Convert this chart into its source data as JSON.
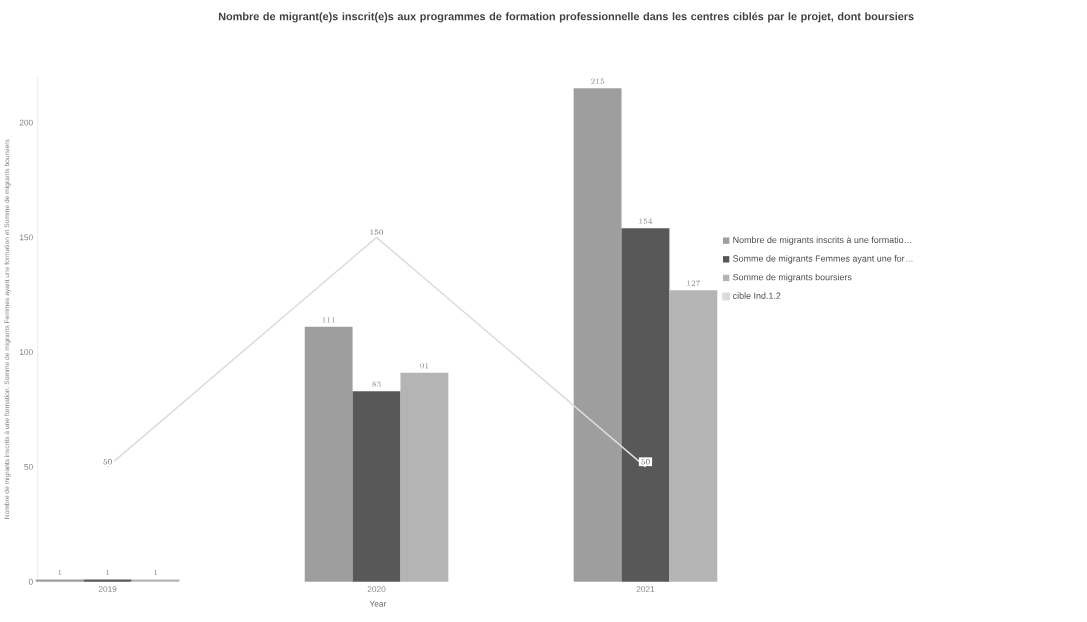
{
  "chart_data": {
    "type": "bar",
    "title": "Nombre de migrant(e)s inscrit(e)s aux programmes de formation professionnelle dans les centres ciblés par le projet, dont boursiers",
    "xlabel": "Year",
    "ylabel": "Nombre de migrants inscrits à une formation, Somme de migrants Femmes ayant une formation et Somme de migrants boursiers",
    "categories": [
      "2019",
      "2020",
      "2021"
    ],
    "series": [
      {
        "name": "Nombre de migrants inscrits à une formatio…",
        "color": "#9e9e9e",
        "values": [
          1,
          111,
          215
        ]
      },
      {
        "name": "Somme de migrants Femmes ayant une for…",
        "color": "#585858",
        "values": [
          1,
          83,
          154
        ]
      },
      {
        "name": "Somme de migrants boursiers",
        "color": "#b4b4b4",
        "values": [
          1,
          91,
          127
        ]
      },
      {
        "name": "cible Ind.1.2",
        "type": "line",
        "color": "#dcdcdc",
        "values": [
          50,
          150,
          50
        ]
      }
    ],
    "ylim": [
      0,
      220
    ],
    "yticks": [
      0,
      50,
      100,
      150,
      200
    ],
    "data_labels": true,
    "legend": "right"
  }
}
